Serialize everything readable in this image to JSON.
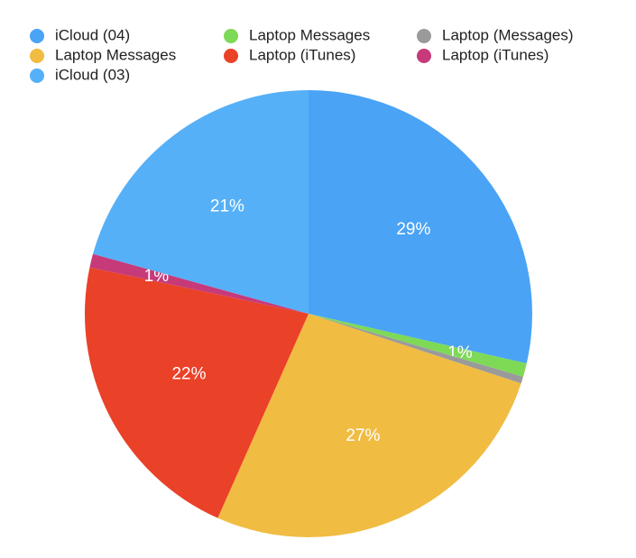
{
  "chart_data": {
    "type": "pie",
    "categories": [
      "iCloud (04)",
      "Laptop Messages",
      "Laptop (Messages)",
      "Laptop Messages",
      "Laptop (iTunes)",
      "Laptop (iTunes)",
      "iCloud (03)"
    ],
    "values": [
      29,
      1,
      0.5,
      27,
      22,
      1,
      21
    ],
    "value_labels": [
      "29%",
      "1%",
      null,
      "27%",
      "22%",
      "1%",
      "21%"
    ],
    "colors": [
      "#4aa3f5",
      "#7ed957",
      "#9a9a9a",
      "#f0bc42",
      "#ea4129",
      "#c63a7a",
      "#56b0f7"
    ]
  }
}
